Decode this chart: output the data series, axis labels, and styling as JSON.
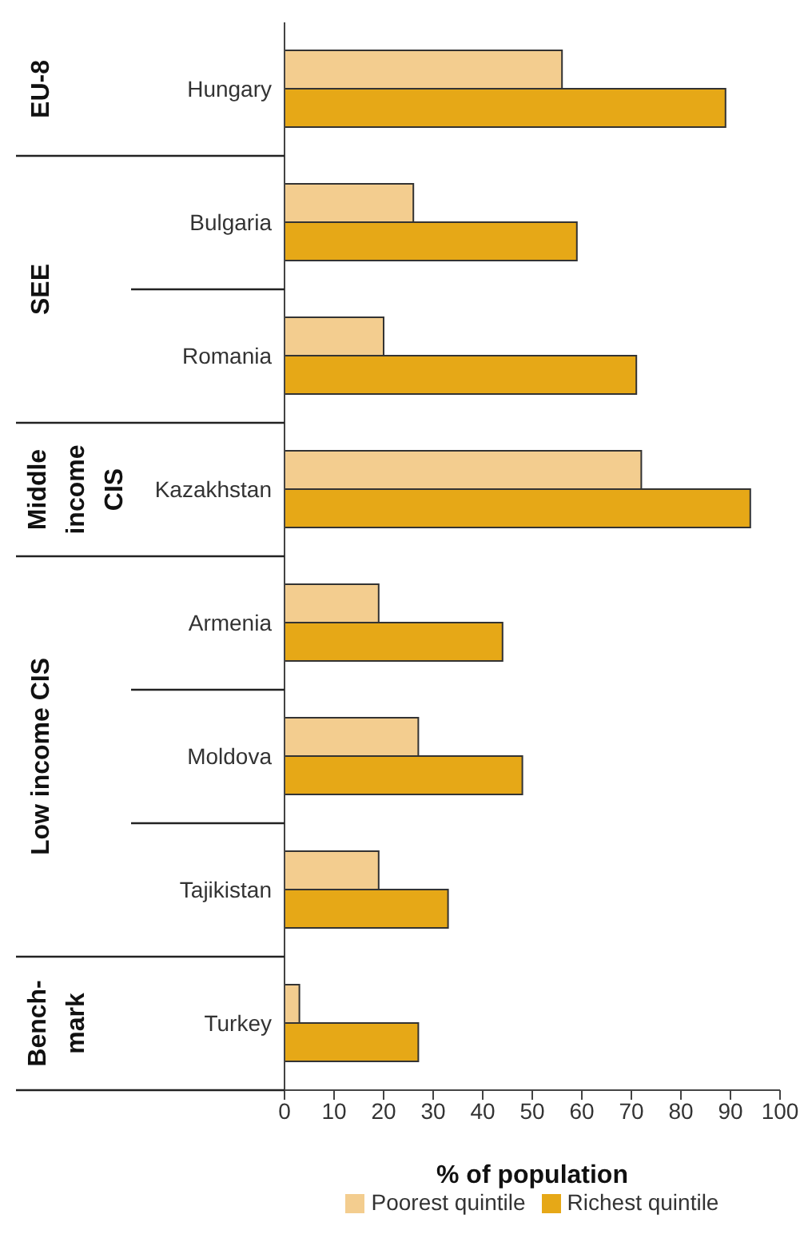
{
  "chart_data": {
    "type": "bar",
    "orientation": "horizontal",
    "xlabel": "% of population",
    "categories": [
      "Hungary",
      "Bulgaria",
      "Romania",
      "Kazakhstan",
      "Armenia",
      "Moldova",
      "Tajikistan",
      "Turkey"
    ],
    "series": [
      {
        "name": "Poorest quintile",
        "color": "#f3cd8f",
        "values": [
          56,
          26,
          20,
          72,
          19,
          27,
          19,
          3
        ]
      },
      {
        "name": "Richest quintile",
        "color": "#e6a817",
        "values": [
          89,
          59,
          71,
          94,
          44,
          48,
          33,
          27
        ]
      }
    ],
    "xlim": [
      0,
      100
    ],
    "xticks": [
      0,
      10,
      20,
      30,
      40,
      50,
      60,
      70,
      80,
      90,
      100
    ],
    "annotations": [
      "EU-8",
      "SEE",
      "Middle income CIS",
      "Low income CIS",
      "Bench-mark"
    ],
    "grid": false,
    "legend": "bottom"
  }
}
